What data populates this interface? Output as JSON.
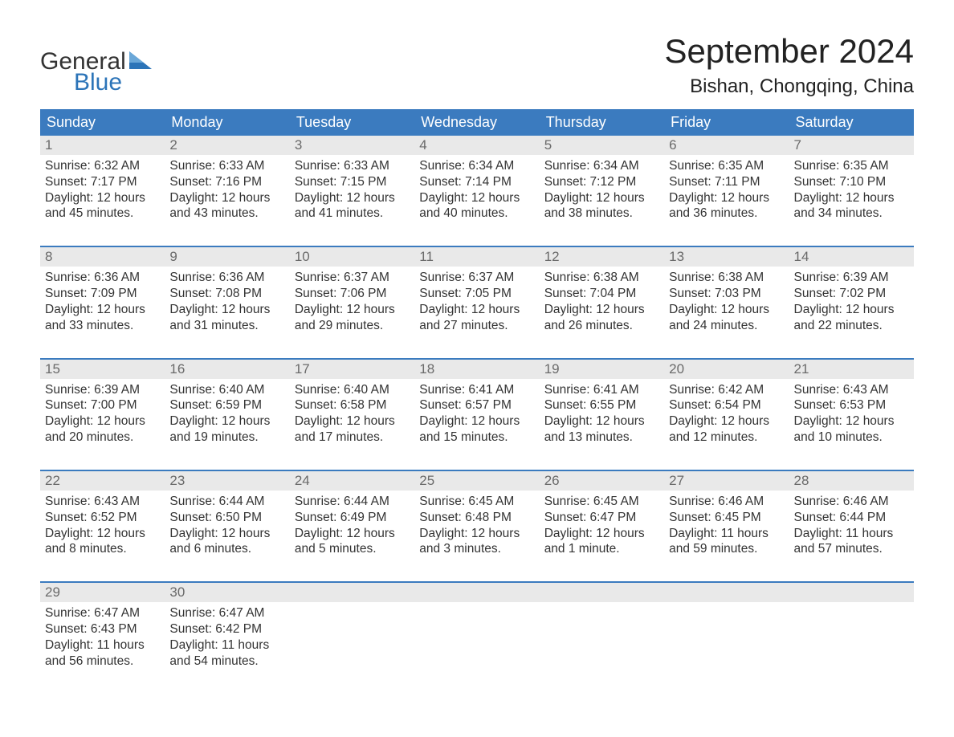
{
  "brand": {
    "word1": "General",
    "word2": "Blue",
    "tri_color_light": "#6aa7d8",
    "tri_color_dark": "#2c74b8",
    "text_dark": "#333333",
    "text_blue": "#2c74b8"
  },
  "title": "September 2024",
  "location": "Bishan, Chongqing, China",
  "header_bg": "#3b7bbf",
  "header_fg": "#ffffff",
  "daynum_bg": "#e9e9e9",
  "daynum_fg": "#6a6a6a",
  "body_fg": "#333333",
  "weekdays": [
    "Sunday",
    "Monday",
    "Tuesday",
    "Wednesday",
    "Thursday",
    "Friday",
    "Saturday"
  ],
  "weeks": [
    [
      {
        "n": "1",
        "sr": "Sunrise: 6:32 AM",
        "ss": "Sunset: 7:17 PM",
        "d1": "Daylight: 12 hours",
        "d2": "and 45 minutes."
      },
      {
        "n": "2",
        "sr": "Sunrise: 6:33 AM",
        "ss": "Sunset: 7:16 PM",
        "d1": "Daylight: 12 hours",
        "d2": "and 43 minutes."
      },
      {
        "n": "3",
        "sr": "Sunrise: 6:33 AM",
        "ss": "Sunset: 7:15 PM",
        "d1": "Daylight: 12 hours",
        "d2": "and 41 minutes."
      },
      {
        "n": "4",
        "sr": "Sunrise: 6:34 AM",
        "ss": "Sunset: 7:14 PM",
        "d1": "Daylight: 12 hours",
        "d2": "and 40 minutes."
      },
      {
        "n": "5",
        "sr": "Sunrise: 6:34 AM",
        "ss": "Sunset: 7:12 PM",
        "d1": "Daylight: 12 hours",
        "d2": "and 38 minutes."
      },
      {
        "n": "6",
        "sr": "Sunrise: 6:35 AM",
        "ss": "Sunset: 7:11 PM",
        "d1": "Daylight: 12 hours",
        "d2": "and 36 minutes."
      },
      {
        "n": "7",
        "sr": "Sunrise: 6:35 AM",
        "ss": "Sunset: 7:10 PM",
        "d1": "Daylight: 12 hours",
        "d2": "and 34 minutes."
      }
    ],
    [
      {
        "n": "8",
        "sr": "Sunrise: 6:36 AM",
        "ss": "Sunset: 7:09 PM",
        "d1": "Daylight: 12 hours",
        "d2": "and 33 minutes."
      },
      {
        "n": "9",
        "sr": "Sunrise: 6:36 AM",
        "ss": "Sunset: 7:08 PM",
        "d1": "Daylight: 12 hours",
        "d2": "and 31 minutes."
      },
      {
        "n": "10",
        "sr": "Sunrise: 6:37 AM",
        "ss": "Sunset: 7:06 PM",
        "d1": "Daylight: 12 hours",
        "d2": "and 29 minutes."
      },
      {
        "n": "11",
        "sr": "Sunrise: 6:37 AM",
        "ss": "Sunset: 7:05 PM",
        "d1": "Daylight: 12 hours",
        "d2": "and 27 minutes."
      },
      {
        "n": "12",
        "sr": "Sunrise: 6:38 AM",
        "ss": "Sunset: 7:04 PM",
        "d1": "Daylight: 12 hours",
        "d2": "and 26 minutes."
      },
      {
        "n": "13",
        "sr": "Sunrise: 6:38 AM",
        "ss": "Sunset: 7:03 PM",
        "d1": "Daylight: 12 hours",
        "d2": "and 24 minutes."
      },
      {
        "n": "14",
        "sr": "Sunrise: 6:39 AM",
        "ss": "Sunset: 7:02 PM",
        "d1": "Daylight: 12 hours",
        "d2": "and 22 minutes."
      }
    ],
    [
      {
        "n": "15",
        "sr": "Sunrise: 6:39 AM",
        "ss": "Sunset: 7:00 PM",
        "d1": "Daylight: 12 hours",
        "d2": "and 20 minutes."
      },
      {
        "n": "16",
        "sr": "Sunrise: 6:40 AM",
        "ss": "Sunset: 6:59 PM",
        "d1": "Daylight: 12 hours",
        "d2": "and 19 minutes."
      },
      {
        "n": "17",
        "sr": "Sunrise: 6:40 AM",
        "ss": "Sunset: 6:58 PM",
        "d1": "Daylight: 12 hours",
        "d2": "and 17 minutes."
      },
      {
        "n": "18",
        "sr": "Sunrise: 6:41 AM",
        "ss": "Sunset: 6:57 PM",
        "d1": "Daylight: 12 hours",
        "d2": "and 15 minutes."
      },
      {
        "n": "19",
        "sr": "Sunrise: 6:41 AM",
        "ss": "Sunset: 6:55 PM",
        "d1": "Daylight: 12 hours",
        "d2": "and 13 minutes."
      },
      {
        "n": "20",
        "sr": "Sunrise: 6:42 AM",
        "ss": "Sunset: 6:54 PM",
        "d1": "Daylight: 12 hours",
        "d2": "and 12 minutes."
      },
      {
        "n": "21",
        "sr": "Sunrise: 6:43 AM",
        "ss": "Sunset: 6:53 PM",
        "d1": "Daylight: 12 hours",
        "d2": "and 10 minutes."
      }
    ],
    [
      {
        "n": "22",
        "sr": "Sunrise: 6:43 AM",
        "ss": "Sunset: 6:52 PM",
        "d1": "Daylight: 12 hours",
        "d2": "and 8 minutes."
      },
      {
        "n": "23",
        "sr": "Sunrise: 6:44 AM",
        "ss": "Sunset: 6:50 PM",
        "d1": "Daylight: 12 hours",
        "d2": "and 6 minutes."
      },
      {
        "n": "24",
        "sr": "Sunrise: 6:44 AM",
        "ss": "Sunset: 6:49 PM",
        "d1": "Daylight: 12 hours",
        "d2": "and 5 minutes."
      },
      {
        "n": "25",
        "sr": "Sunrise: 6:45 AM",
        "ss": "Sunset: 6:48 PM",
        "d1": "Daylight: 12 hours",
        "d2": "and 3 minutes."
      },
      {
        "n": "26",
        "sr": "Sunrise: 6:45 AM",
        "ss": "Sunset: 6:47 PM",
        "d1": "Daylight: 12 hours",
        "d2": "and 1 minute."
      },
      {
        "n": "27",
        "sr": "Sunrise: 6:46 AM",
        "ss": "Sunset: 6:45 PM",
        "d1": "Daylight: 11 hours",
        "d2": "and 59 minutes."
      },
      {
        "n": "28",
        "sr": "Sunrise: 6:46 AM",
        "ss": "Sunset: 6:44 PM",
        "d1": "Daylight: 11 hours",
        "d2": "and 57 minutes."
      }
    ],
    [
      {
        "n": "29",
        "sr": "Sunrise: 6:47 AM",
        "ss": "Sunset: 6:43 PM",
        "d1": "Daylight: 11 hours",
        "d2": "and 56 minutes."
      },
      {
        "n": "30",
        "sr": "Sunrise: 6:47 AM",
        "ss": "Sunset: 6:42 PM",
        "d1": "Daylight: 11 hours",
        "d2": "and 54 minutes."
      },
      {
        "empty": true
      },
      {
        "empty": true
      },
      {
        "empty": true
      },
      {
        "empty": true
      },
      {
        "empty": true
      }
    ]
  ]
}
